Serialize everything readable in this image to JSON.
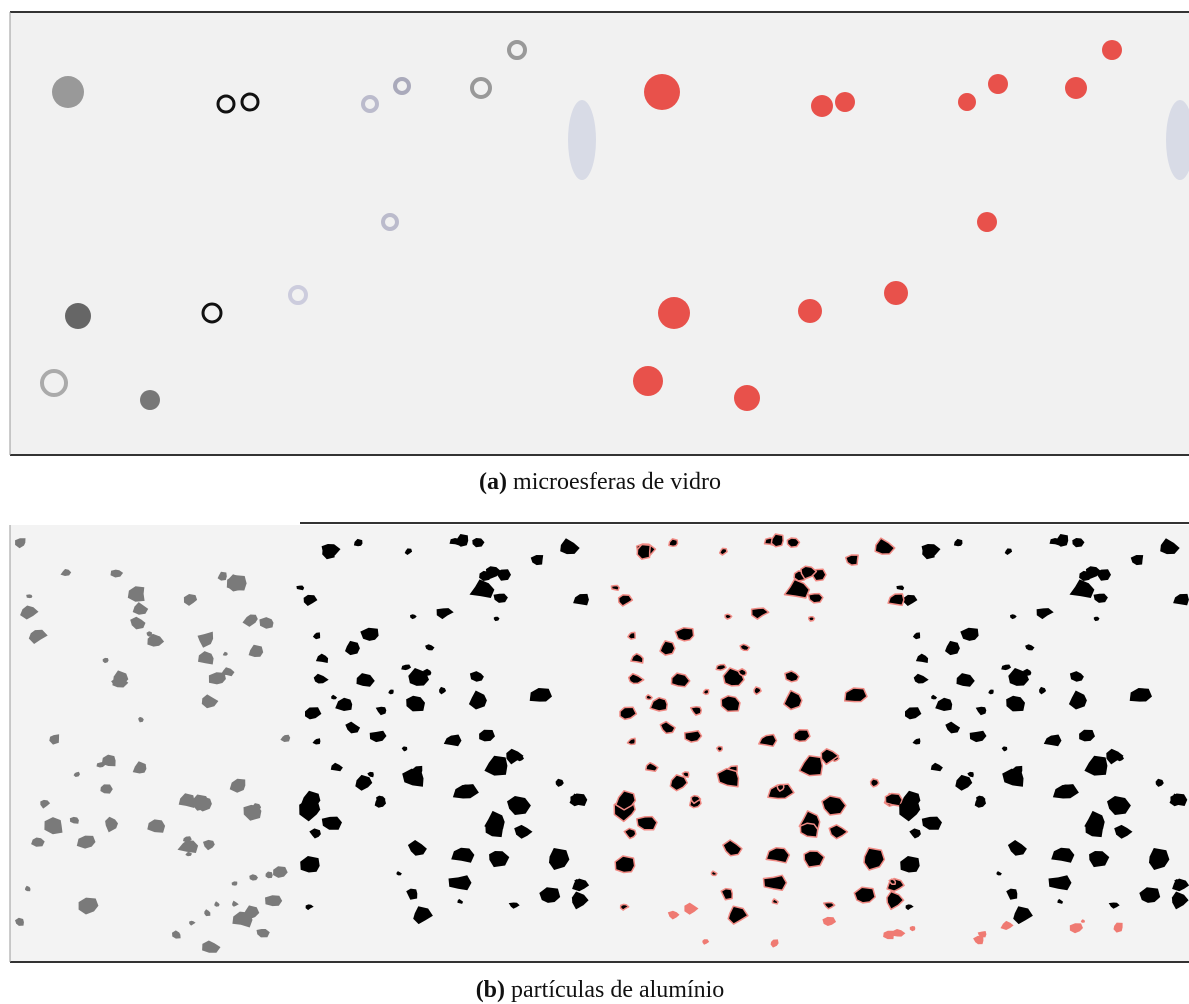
{
  "figure": {
    "panels": [
      {
        "label": "(a)",
        "caption": "microesferas de vidro"
      },
      {
        "label": "(b)",
        "caption": "partículas de alumínio"
      }
    ]
  }
}
